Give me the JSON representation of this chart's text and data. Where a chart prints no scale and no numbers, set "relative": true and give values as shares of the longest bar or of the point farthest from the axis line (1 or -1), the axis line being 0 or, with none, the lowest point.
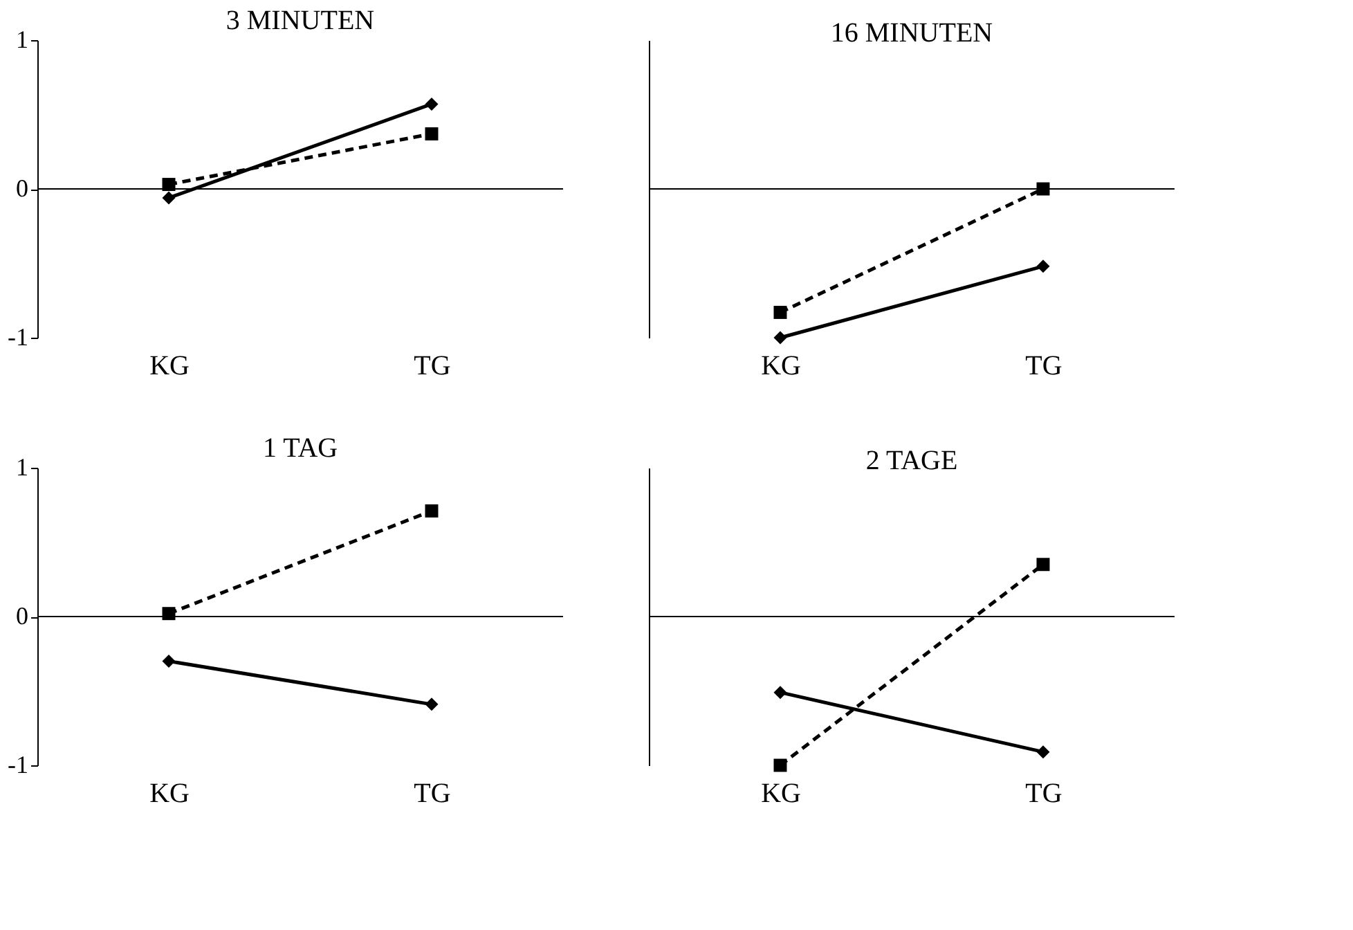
{
  "chart_data": [
    {
      "type": "line",
      "title": "3 MINUTEN",
      "categories": [
        "KG",
        "TG"
      ],
      "ylim": [
        -1,
        1
      ],
      "yticks": [
        -1,
        0,
        1
      ],
      "grid": false,
      "ref_lines": [
        {
          "axis": "y",
          "value": 0,
          "color": "#000000"
        }
      ],
      "series": [
        {
          "color": "#000000",
          "marker": "diamond",
          "line_style": "solid",
          "values": [
            -0.06,
            0.57
          ]
        },
        {
          "color": "#000000",
          "marker": "square",
          "line_style": "dashed",
          "values": [
            0.03,
            0.37
          ]
        }
      ]
    },
    {
      "type": "line",
      "title": "16 MINUTEN",
      "categories": [
        "KG",
        "TG"
      ],
      "relative": true,
      "grid": false,
      "series": [
        {
          "color": "#000000",
          "marker": "diamond",
          "line_style": "solid",
          "values": [
            -1,
            -0.52
          ]
        },
        {
          "color": "#000000",
          "marker": "square",
          "line_style": "dashed",
          "values": [
            -0.83,
            0
          ]
        }
      ]
    },
    {
      "type": "line",
      "title": "1 TAG",
      "categories": [
        "KG",
        "TG"
      ],
      "ylim": [
        -1,
        1
      ],
      "yticks": [
        -1,
        0,
        1
      ],
      "grid": false,
      "ref_lines": [
        {
          "axis": "y",
          "value": 0,
          "color": "#000000"
        }
      ],
      "series": [
        {
          "color": "#000000",
          "marker": "diamond",
          "line_style": "solid",
          "values": [
            -0.3,
            -0.59
          ]
        },
        {
          "color": "#000000",
          "marker": "square",
          "line_style": "dashed",
          "values": [
            0.02,
            0.71
          ]
        }
      ]
    },
    {
      "type": "line",
      "title": "2 TAGE",
      "categories": [
        "KG",
        "TG"
      ],
      "relative": true,
      "grid": false,
      "series": [
        {
          "color": "#000000",
          "marker": "diamond",
          "line_style": "solid",
          "values": [
            -0.51,
            -0.91
          ]
        },
        {
          "color": "#000000",
          "marker": "square",
          "line_style": "dashed",
          "values": [
            -1,
            0.35
          ]
        }
      ]
    }
  ]
}
